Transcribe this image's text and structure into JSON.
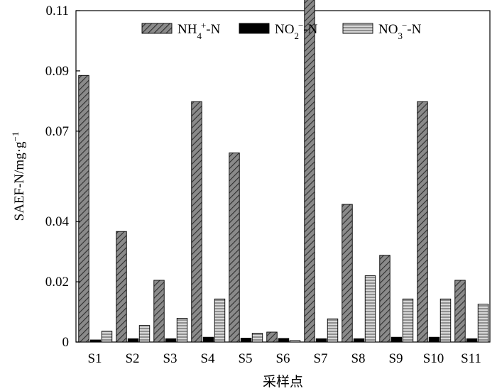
{
  "chart_data": {
    "type": "bar",
    "title": "",
    "xlabel": "采样点",
    "ylabel": "SAEF-N/mg·g",
    "ylabel_sup": "−1",
    "ylim": [
      0,
      0.11
    ],
    "yticks": [
      0,
      0.02,
      0.04,
      0.07,
      0.09,
      0.11
    ],
    "ytick_labels": [
      "0",
      "0.02",
      "0.04",
      "0.07",
      "0.09",
      "0.11"
    ],
    "categories": [
      "S1",
      "S2",
      "S3",
      "S4",
      "S5",
      "S6",
      "S7",
      "S8",
      "S9",
      "S10",
      "S11"
    ],
    "series": [
      {
        "name": "NH4+-N",
        "label_main": "NH",
        "label_sub": "4",
        "label_sup": "+",
        "label_tail": "-N",
        "values": [
          0.0885,
          0.0367,
          0.0205,
          0.0798,
          0.0628,
          0.0033,
          0.1144,
          0.0457,
          0.0288,
          0.0798,
          0.0205
        ]
      },
      {
        "name": "NO2−-N",
        "label_main": "NO",
        "label_sub": "2",
        "label_sup": "−",
        "label_tail": "-N",
        "values": [
          0.0007,
          0.0011,
          0.0011,
          0.0016,
          0.0013,
          0.0012,
          0.0011,
          0.0011,
          0.0016,
          0.0016,
          0.0011
        ]
      },
      {
        "name": "NO3−-N",
        "label_main": "NO",
        "label_sub": "3",
        "label_sup": "−",
        "label_tail": "-N",
        "values": [
          0.0036,
          0.0055,
          0.0079,
          0.0143,
          0.0029,
          0.0005,
          0.0077,
          0.022,
          0.0143,
          0.0143,
          0.0126
        ]
      }
    ],
    "legend_position": "top-right",
    "grid": false
  }
}
